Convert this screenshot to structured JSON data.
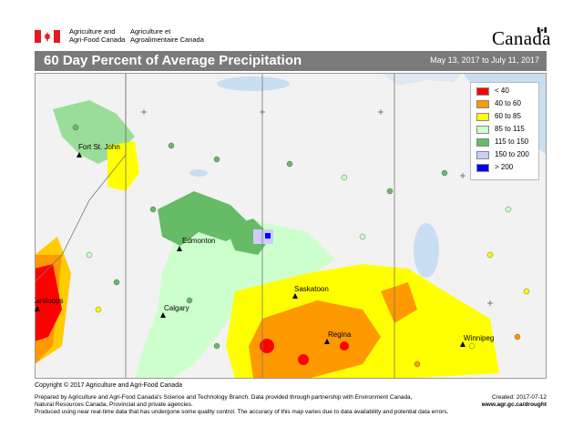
{
  "header": {
    "dept_en_line1": "Agriculture and",
    "dept_en_line2": "Agri-Food Canada",
    "dept_fr_line1": "Agriculture et",
    "dept_fr_line2": "Agroalimentaire Canada",
    "wordmark": "Canada"
  },
  "titlebar": {
    "title": "60 Day Percent of Average Precipitation",
    "date_range": "May 13, 2017 to July 11, 2017"
  },
  "legend": {
    "items": [
      {
        "label": "< 40",
        "color": "#ff0000"
      },
      {
        "label": "40 to 60",
        "color": "#ff9900"
      },
      {
        "label": "60 to 85",
        "color": "#ffff00"
      },
      {
        "label": "85 to 115",
        "color": "#ccffcc"
      },
      {
        "label": "115 to 150",
        "color": "#66bb66"
      },
      {
        "label": "150 to 200",
        "color": "#ccccff"
      },
      {
        "label": "> 200",
        "color": "#0000ff"
      }
    ]
  },
  "cities": [
    {
      "name": "Fort St. John"
    },
    {
      "name": "Edmonton"
    },
    {
      "name": "Saskatoon"
    },
    {
      "name": "Calgary"
    },
    {
      "name": "Kamloops"
    },
    {
      "name": "Regina"
    },
    {
      "name": "Winnipeg"
    }
  ],
  "map_colors": {
    "land": "#f2f2f2",
    "water": "#c9def2",
    "station_green": "#66bb66",
    "station_yellow": "#ffff00",
    "station_orange": "#ff9900"
  },
  "copyright": "Copyright © 2017 Agriculture and Agri-Food Canada",
  "footer": {
    "line1": "Prepared by Agriculture and Agri-Food Canada's Science and Technology Branch. Data provided through partnership with Environment Canada,",
    "line2": "Natural Resources Canada, Provincial and private agencies.",
    "line3": "Produced using near real-time data that has undergone some quality control. The accuracy of this map varies due to data availability and potential data errors.",
    "created": "Created: 2017-07-12",
    "url": "www.agr.gc.ca/drought"
  }
}
